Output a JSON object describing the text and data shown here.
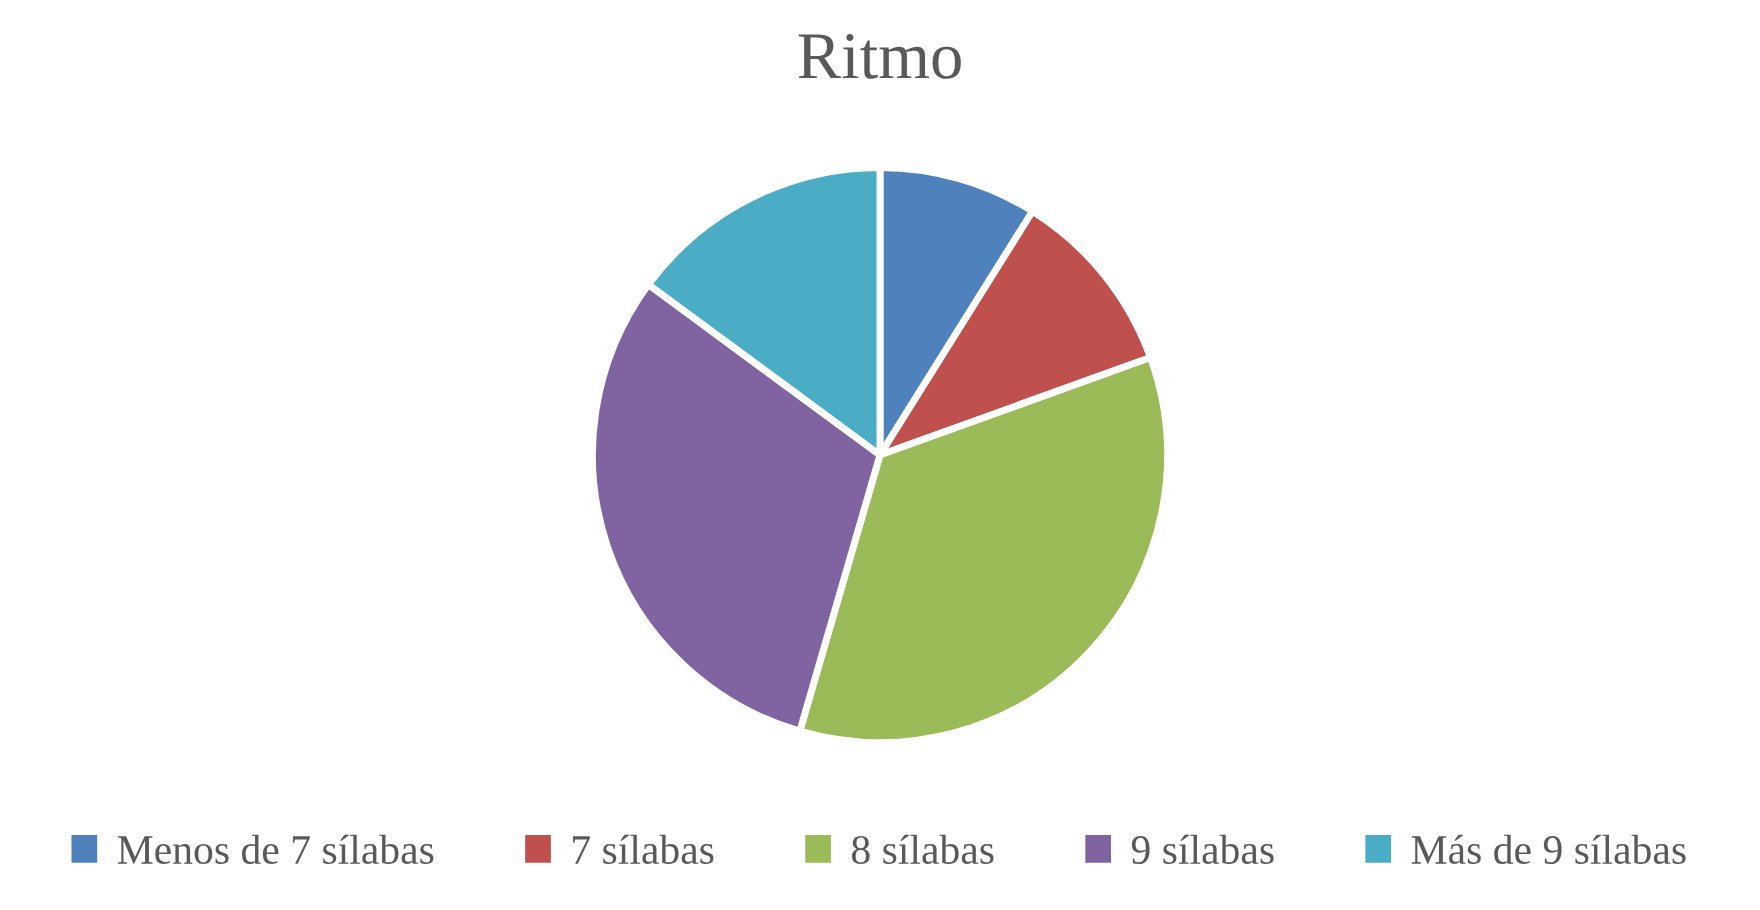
{
  "chart_data": {
    "type": "pie",
    "title": "Ritmo",
    "categories": [
      "Menos de 7 sílabas",
      "7 sílabas",
      "8 sílabas",
      "9 sílabas",
      "Más de 9 sílabas"
    ],
    "values": [
      8.9,
      10.6,
      35.0,
      30.6,
      14.9
    ],
    "colors": [
      "#4f81bd",
      "#c0504d",
      "#9bbb59",
      "#8064a2",
      "#4bacc6"
    ],
    "legend": "bottom"
  }
}
